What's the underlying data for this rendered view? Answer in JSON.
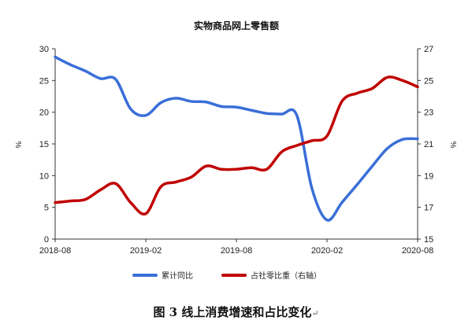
{
  "chart_data": {
    "type": "line",
    "title": "实物商品网上零售额",
    "left_axis_unit": "%",
    "right_axis_unit": "%",
    "ylim_left": [
      0,
      30
    ],
    "ylim_right": [
      15,
      27
    ],
    "yticks_left": [
      "0",
      "5",
      "10",
      "15",
      "20",
      "25",
      "30"
    ],
    "yticks_right": [
      "15",
      "17",
      "19",
      "21",
      "23",
      "25",
      "27"
    ],
    "x_ticks": [
      "2018-08",
      "2019-02",
      "2019-08",
      "2020-02",
      "2020-08"
    ],
    "x": [
      "2018-08",
      "2018-09",
      "2018-10",
      "2018-11",
      "2018-12",
      "2019-01",
      "2019-02",
      "2019-03",
      "2019-04",
      "2019-05",
      "2019-06",
      "2019-07",
      "2019-08",
      "2019-09",
      "2019-10",
      "2019-11",
      "2019-12",
      "2020-01",
      "2020-02",
      "2020-03",
      "2020-04",
      "2020-05",
      "2020-06",
      "2020-07",
      "2020-08"
    ],
    "grid": false,
    "legend_position": "bottom",
    "series": [
      {
        "name": "累计同比",
        "axis": "left",
        "color": "#3A6FD8",
        "values": [
          28.7,
          27.5,
          26.5,
          25.3,
          25.2,
          20.5,
          19.5,
          21.5,
          22.2,
          21.7,
          21.6,
          20.9,
          20.8,
          20.3,
          19.8,
          19.7,
          19.5,
          8.0,
          3.0,
          5.8,
          8.6,
          11.5,
          14.3,
          15.7,
          15.8
        ]
      },
      {
        "name": "占社零比重（右轴）",
        "axis": "right",
        "color": "#C00000",
        "values": [
          17.3,
          17.4,
          17.5,
          18.1,
          18.5,
          17.3,
          16.6,
          18.3,
          18.6,
          18.9,
          19.6,
          19.4,
          19.4,
          19.5,
          19.4,
          20.5,
          20.9,
          21.2,
          21.5,
          23.7,
          24.2,
          24.5,
          25.2,
          25.0,
          24.6
        ]
      }
    ]
  },
  "caption": {
    "text": "图 3  线上消费增速和占比变化",
    "mark": "↵"
  }
}
